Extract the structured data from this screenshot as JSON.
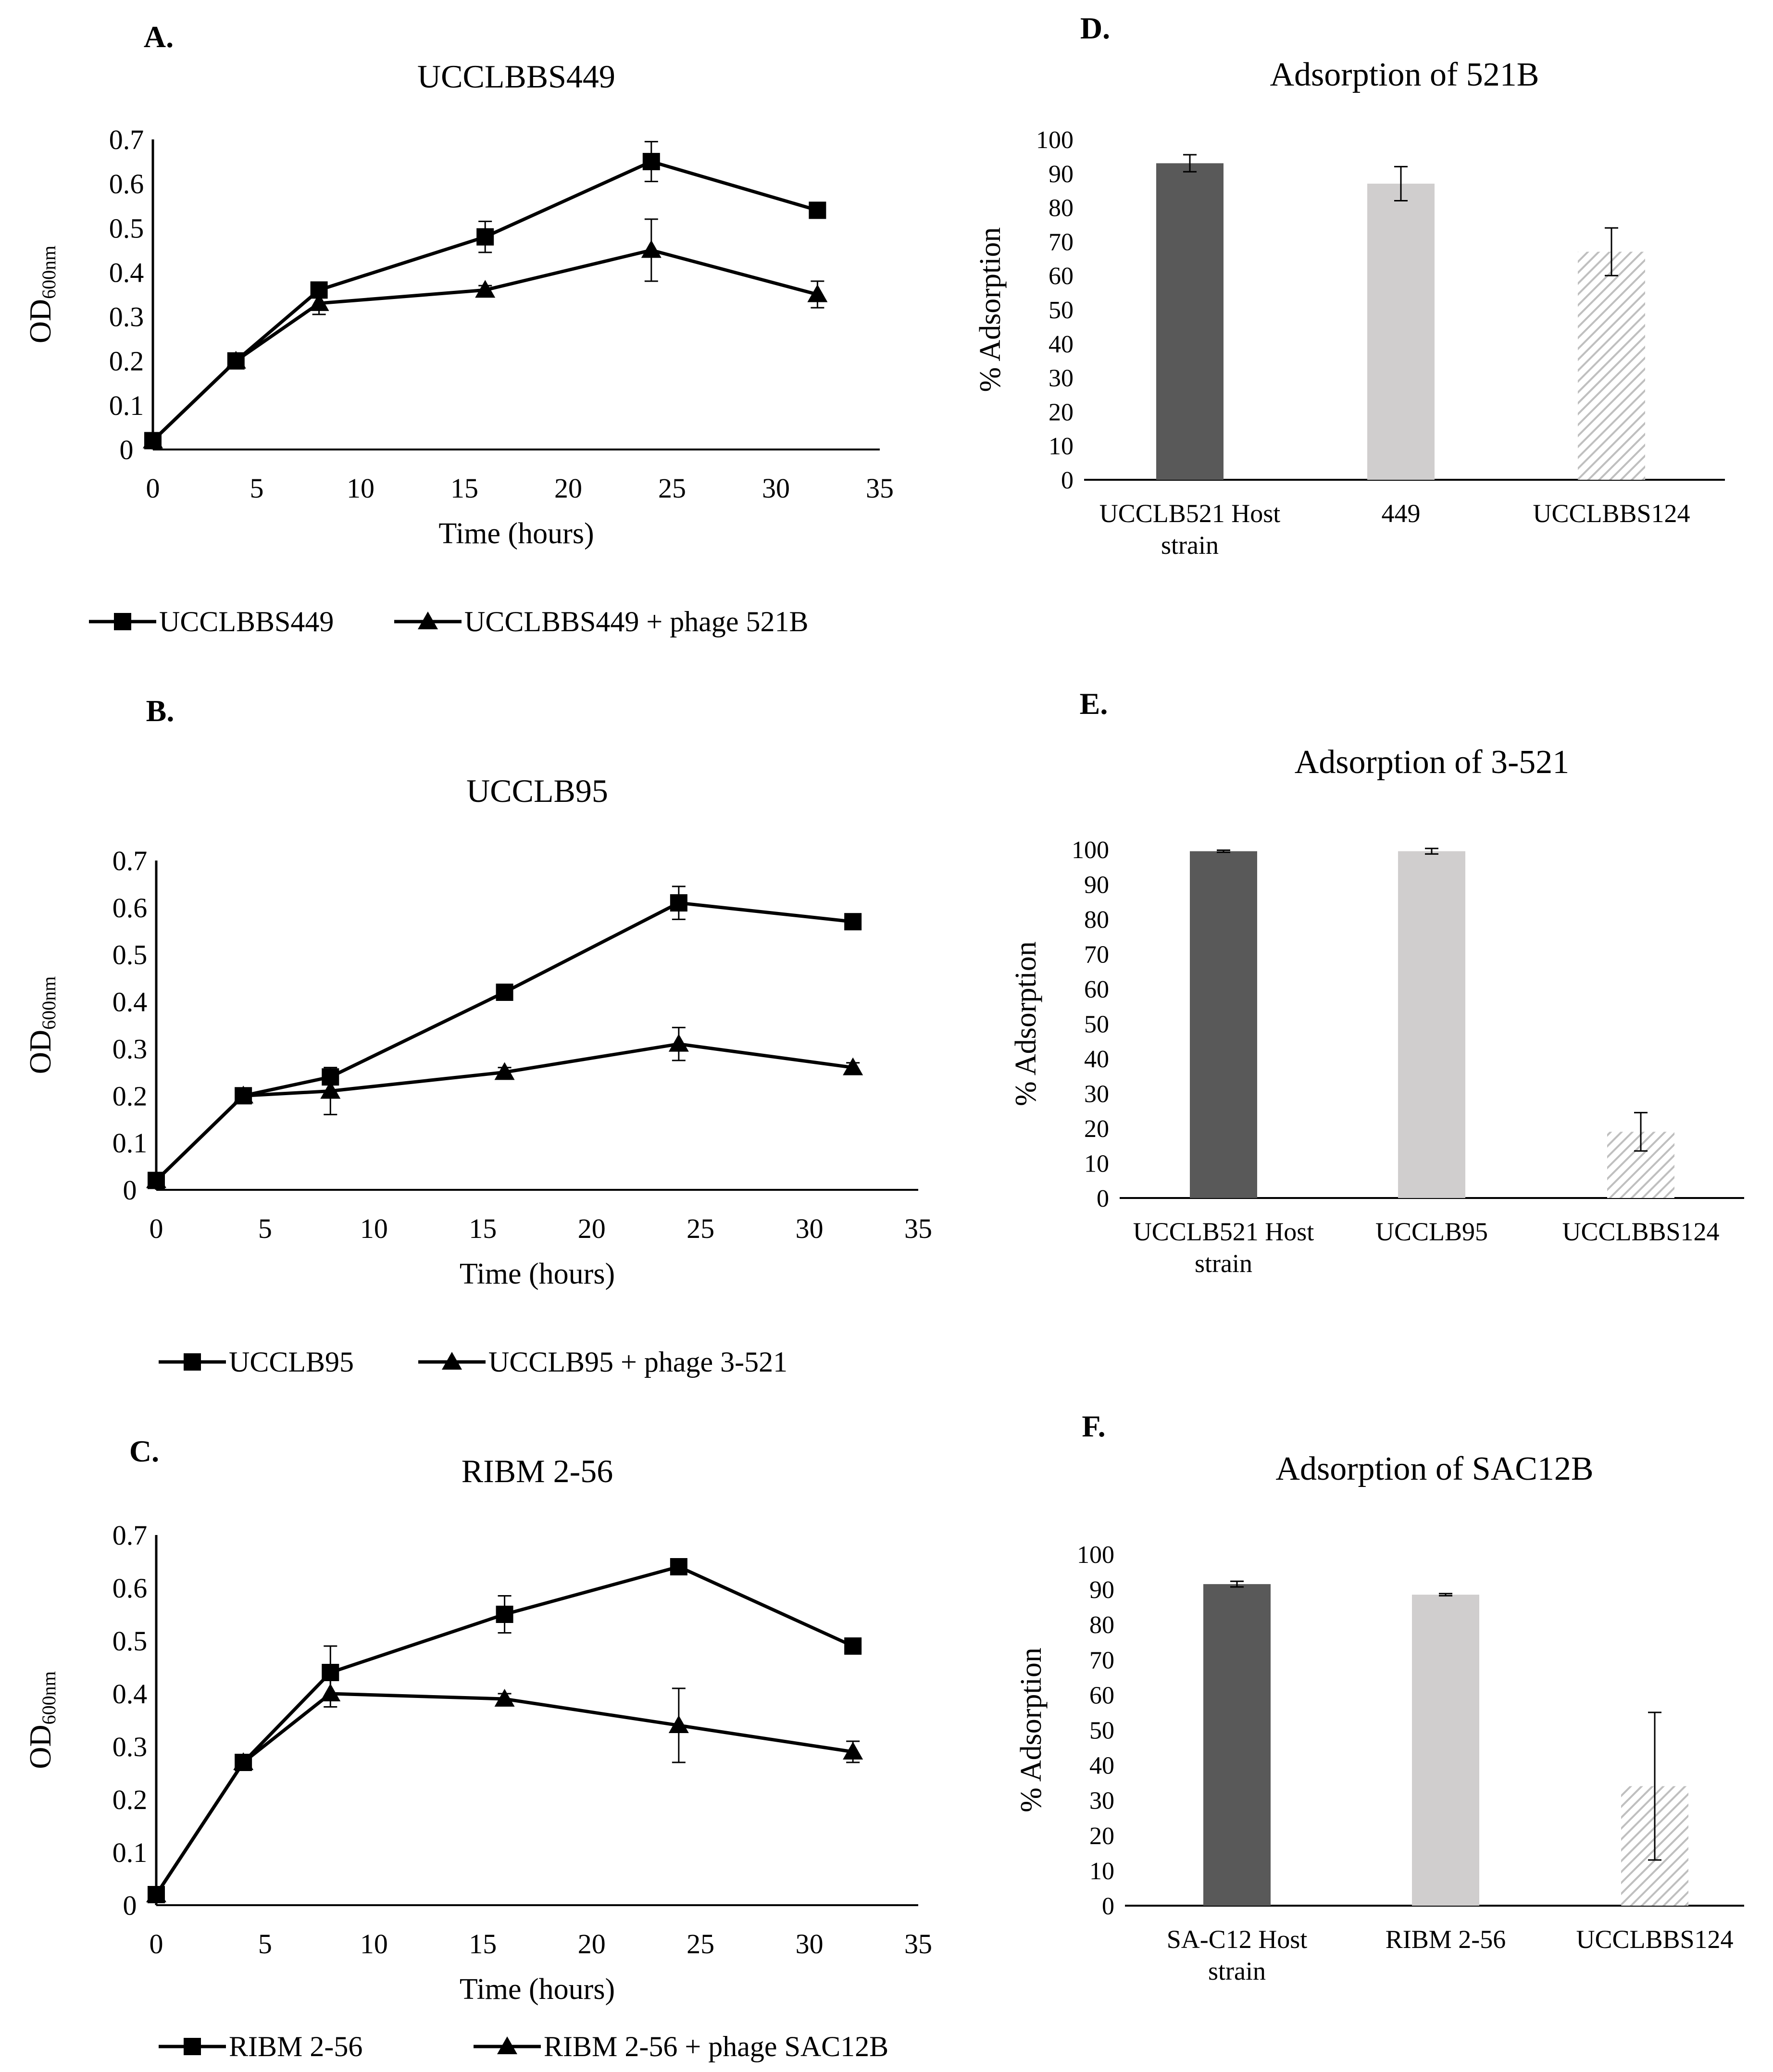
{
  "figure": {
    "colors": {
      "host": "#595959",
      "test": "#d0cece",
      "control_hatch": "#bfbfbf",
      "line": "#000000"
    }
  },
  "chart_data": [
    {
      "id": "A",
      "panel_label": "A.",
      "type": "line",
      "title": "UCCLBBS449",
      "xlabel": "Time (hours)",
      "ylabel_main": "OD",
      "ylabel_sub": "600nm",
      "xlim": [
        0,
        35
      ],
      "ylim": [
        0,
        0.7
      ],
      "xticks": [
        0,
        5,
        10,
        15,
        20,
        25,
        30,
        35
      ],
      "yticks": [
        0,
        0.1,
        0.2,
        0.3,
        0.4,
        0.5,
        0.6,
        0.7
      ],
      "x": [
        0,
        4,
        8,
        16,
        24,
        32
      ],
      "series": [
        {
          "name": "UCCLBBS449",
          "marker": "square",
          "values": [
            0.02,
            0.2,
            0.36,
            0.48,
            0.65,
            0.54
          ],
          "errors": [
            0,
            0.005,
            0.01,
            0.035,
            0.045,
            0.01
          ]
        },
        {
          "name": "UCCLBBS449 + phage 521B",
          "marker": "triangle",
          "values": [
            0.02,
            0.2,
            0.33,
            0.36,
            0.45,
            0.35
          ],
          "errors": [
            0,
            0.005,
            0.025,
            0.01,
            0.07,
            0.03
          ]
        }
      ]
    },
    {
      "id": "B",
      "panel_label": "B.",
      "type": "line",
      "title": "UCCLB95",
      "xlabel": "Time (hours)",
      "ylabel_main": "OD",
      "ylabel_sub": "600nm",
      "xlim": [
        0,
        35
      ],
      "ylim": [
        0,
        0.7
      ],
      "xticks": [
        0,
        5,
        10,
        15,
        20,
        25,
        30,
        35
      ],
      "yticks": [
        0,
        0.1,
        0.2,
        0.3,
        0.4,
        0.5,
        0.6,
        0.7
      ],
      "x": [
        0,
        4,
        8,
        16,
        24,
        32
      ],
      "series": [
        {
          "name": "UCCLB95",
          "marker": "square",
          "values": [
            0.02,
            0.2,
            0.24,
            0.42,
            0.61,
            0.57
          ],
          "errors": [
            0,
            0.005,
            0.01,
            0.01,
            0.035,
            0.01
          ]
        },
        {
          "name": "UCCLB95 + phage 3-521",
          "marker": "triangle",
          "values": [
            0.02,
            0.2,
            0.21,
            0.25,
            0.31,
            0.26
          ],
          "errors": [
            0,
            0.005,
            0.05,
            0.01,
            0.035,
            0.01
          ]
        }
      ]
    },
    {
      "id": "C",
      "panel_label": "C.",
      "type": "line",
      "title": "RIBM 2-56",
      "xlabel": "Time (hours)",
      "ylabel_main": "OD",
      "ylabel_sub": "600nm",
      "xlim": [
        0,
        35
      ],
      "ylim": [
        0,
        0.7
      ],
      "xticks": [
        0,
        5,
        10,
        15,
        20,
        25,
        30,
        35
      ],
      "yticks": [
        0,
        0.1,
        0.2,
        0.3,
        0.4,
        0.5,
        0.6,
        0.7
      ],
      "x": [
        0,
        4,
        8,
        16,
        24,
        32
      ],
      "series": [
        {
          "name": "RIBM 2-56",
          "marker": "square",
          "values": [
            0.02,
            0.27,
            0.44,
            0.55,
            0.64,
            0.49
          ],
          "errors": [
            0,
            0.005,
            0.05,
            0.035,
            0.015,
            0.01
          ]
        },
        {
          "name": "RIBM 2-56 + phage SAC12B",
          "marker": "triangle",
          "values": [
            0.02,
            0.27,
            0.4,
            0.39,
            0.34,
            0.29
          ],
          "errors": [
            0,
            0.005,
            0.025,
            0.01,
            0.07,
            0.02
          ]
        }
      ]
    },
    {
      "id": "D",
      "panel_label": "D.",
      "type": "bar",
      "title": "Adsorption of 521B",
      "ylabel": "% Adsorption",
      "ylim": [
        0,
        100
      ],
      "yticks": [
        0,
        10,
        20,
        30,
        40,
        50,
        60,
        70,
        80,
        90,
        100
      ],
      "categories": [
        [
          "UCCLB521 Host",
          "strain"
        ],
        [
          "449"
        ],
        [
          "UCCLBBS124"
        ]
      ],
      "values": [
        93,
        87,
        67
      ],
      "errors": [
        2.5,
        5,
        7
      ],
      "fills": [
        "host",
        "test",
        "hatch"
      ]
    },
    {
      "id": "E",
      "panel_label": "E.",
      "type": "bar",
      "title": "Adsorption of 3-521",
      "ylabel": "% Adsorption",
      "ylim": [
        0,
        100
      ],
      "yticks": [
        0,
        10,
        20,
        30,
        40,
        50,
        60,
        70,
        80,
        90,
        100
      ],
      "categories": [
        [
          "UCCLB521 Host",
          "strain"
        ],
        [
          "UCCLB95"
        ],
        [
          "UCCLBBS124"
        ]
      ],
      "values": [
        99.5,
        99.5,
        19
      ],
      "errors": [
        0.3,
        0.8,
        5.5
      ],
      "fills": [
        "host",
        "test",
        "hatch"
      ]
    },
    {
      "id": "F",
      "panel_label": "F.",
      "type": "bar",
      "title": "Adsorption of SAC12B",
      "ylabel": "% Adsorption",
      "ylim": [
        0,
        100
      ],
      "yticks": [
        0,
        10,
        20,
        30,
        40,
        50,
        60,
        70,
        80,
        90,
        100
      ],
      "categories": [
        [
          "SA-C12 Host",
          "strain"
        ],
        [
          "RIBM 2-56"
        ],
        [
          "UCCLBBS124"
        ]
      ],
      "values": [
        91.5,
        88.5,
        34
      ],
      "errors": [
        0.8,
        0.3,
        21
      ],
      "fills": [
        "host",
        "test",
        "hatch"
      ]
    }
  ]
}
